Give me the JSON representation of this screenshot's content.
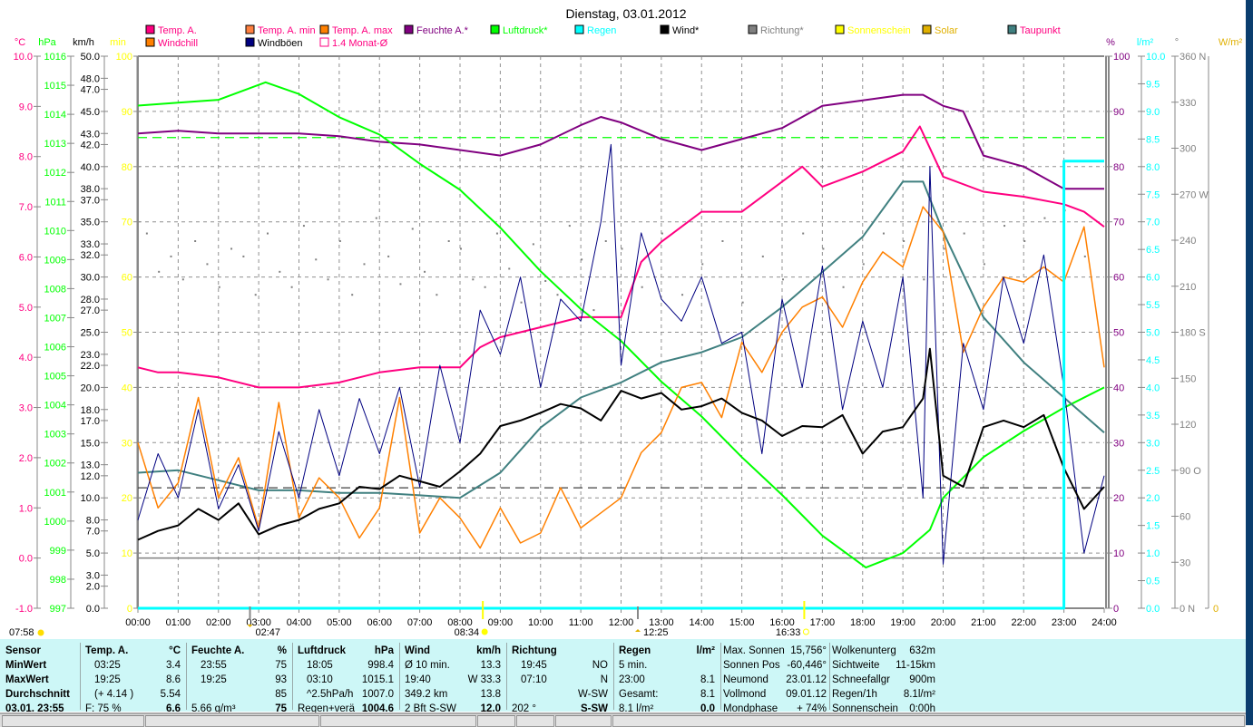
{
  "chart_data": {
    "type": "line",
    "title": "Dienstag, 03.01.2012",
    "xlim": [
      0,
      24
    ],
    "x_ticks": [
      "00:00",
      "01:00",
      "02:00",
      "03:00",
      "04:00",
      "05:00",
      "06:00",
      "07:00",
      "08:00",
      "09:00",
      "10:00",
      "11:00",
      "12:00",
      "13:00",
      "14:00",
      "15:00",
      "16:00",
      "17:00",
      "18:00",
      "19:00",
      "20:00",
      "21:00",
      "22:00",
      "23:00",
      "24:00"
    ],
    "axes": {
      "left": [
        {
          "unit": "°C",
          "range": [
            -1,
            10
          ],
          "color": "#ff0080"
        },
        {
          "unit": "hPa",
          "range": [
            997,
            1016
          ],
          "color": "#00ff00"
        },
        {
          "unit": "km/h",
          "range": [
            0,
            50
          ],
          "color": "#000000",
          "ticks": [
            50,
            48,
            47,
            45,
            43,
            42,
            40,
            38,
            37,
            35,
            33,
            32,
            30,
            28,
            27,
            25,
            23,
            22,
            20,
            18,
            17,
            15,
            13,
            12,
            10,
            8,
            7,
            5,
            3,
            2,
            0
          ]
        },
        {
          "unit": "min",
          "range": [
            0,
            100
          ],
          "color": "#ffff00"
        }
      ],
      "right": [
        {
          "unit": "%",
          "range": [
            0,
            100
          ],
          "color": "#800080"
        },
        {
          "unit": "l/m²",
          "range": [
            0,
            10
          ],
          "color": "#00ffff"
        },
        {
          "unit": "°",
          "range": [
            0,
            360
          ],
          "color": "#808080",
          "compass": {
            "360": "N",
            "270": "W",
            "180": "S",
            "90": "O",
            "0": "N"
          }
        },
        {
          "unit": "W/m²",
          "range": [
            0,
            0
          ],
          "color": "#e0b000"
        }
      ]
    },
    "legend": [
      {
        "name": "Temp. A.",
        "color": "#ff0080",
        "text_color": "#ff0080"
      },
      {
        "name": "Temp. A. min",
        "color": "#ff8040",
        "text_color": "#ff0080"
      },
      {
        "name": "Temp. A. max",
        "color": "#ff8000",
        "text_color": "#ff0080"
      },
      {
        "name": "Feuchte A.*",
        "color": "#800080",
        "text_color": "#800080"
      },
      {
        "name": "Luftdruck*",
        "color": "#00ff00",
        "text_color": "#00ff00"
      },
      {
        "name": "Regen",
        "color": "#00ffff",
        "text_color": "#00ffff"
      },
      {
        "name": "Wind*",
        "color": "#000000",
        "text_color": "#000000"
      },
      {
        "name": "Richtung*",
        "color": "#808080",
        "text_color": "#808080"
      },
      {
        "name": "Sonnenschein",
        "color": "#ffff00",
        "text_color": "#ffff00"
      },
      {
        "name": "Solar",
        "color": "#e0b000",
        "text_color": "#e0b000"
      },
      {
        "name": "Taupunkt",
        "color": "#408080",
        "text_color": "#ff0080"
      },
      {
        "name": "Windchill",
        "color": "#ff8000",
        "text_color": "#ff0080"
      },
      {
        "name": "Windböen",
        "color": "#000080",
        "text_color": "#000000"
      },
      {
        "name": "1.4 Monat-Ø",
        "color": "#ff0080",
        "text_color": "#ff0080",
        "hollow": true
      }
    ],
    "series": [
      {
        "name": "Temp. A.",
        "axis": "°C",
        "color": "#ff0080",
        "width": 2,
        "x": [
          0,
          0.5,
          1,
          2,
          3,
          4,
          5,
          6,
          7,
          8,
          8.5,
          9,
          10,
          11,
          12,
          12.5,
          13,
          14,
          15,
          16,
          16.5,
          17,
          18,
          19,
          19.42,
          20,
          21,
          22,
          23,
          23.5,
          24
        ],
        "y": [
          3.8,
          3.7,
          3.7,
          3.6,
          3.4,
          3.4,
          3.5,
          3.7,
          3.8,
          3.8,
          4.2,
          4.4,
          4.6,
          4.8,
          4.8,
          5.9,
          6.3,
          6.9,
          6.9,
          7.5,
          7.8,
          7.4,
          7.7,
          8.1,
          8.6,
          7.6,
          7.3,
          7.2,
          7.05,
          6.9,
          6.6
        ]
      },
      {
        "name": "Feuchte A.*",
        "axis": "%",
        "color": "#800080",
        "width": 2,
        "x": [
          0,
          1,
          2,
          3,
          4,
          5,
          6,
          7,
          8,
          9,
          10,
          11,
          11.5,
          12,
          13,
          14,
          15,
          16,
          17,
          18,
          19,
          19.5,
          20,
          20.5,
          21,
          22,
          23,
          24
        ],
        "y": [
          86,
          86.5,
          86,
          86,
          86,
          85.5,
          84.5,
          84,
          83,
          82,
          84,
          87.5,
          89,
          88,
          85,
          83,
          85,
          87,
          91,
          92,
          93,
          93,
          91,
          90,
          82,
          80,
          76,
          76
        ]
      },
      {
        "name": "Luftdruck*",
        "axis": "hPa",
        "color": "#00ff00",
        "width": 2,
        "x": [
          0,
          1,
          2,
          3.17,
          4,
          5,
          6,
          7,
          8,
          9,
          10,
          11,
          12,
          13,
          14,
          15,
          16,
          17,
          18.08,
          19,
          19.67,
          20,
          21,
          22,
          23,
          24
        ],
        "y": [
          1014.3,
          1014.4,
          1014.5,
          1015.1,
          1014.7,
          1013.9,
          1013.3,
          1012.3,
          1011.4,
          1010.1,
          1008.6,
          1007.3,
          1006.2,
          1004.8,
          1003.6,
          1002.2,
          1000.9,
          999.5,
          998.4,
          998.9,
          999.7,
          1000.8,
          1002.2,
          1003.1,
          1003.9,
          1004.6
        ]
      },
      {
        "name": "Taupunkt",
        "axis": "°C",
        "color": "#408080",
        "width": 2,
        "x": [
          0,
          1,
          2,
          3,
          4,
          5,
          6,
          7,
          8,
          9,
          10,
          11,
          12,
          13,
          14,
          15,
          16,
          17,
          18,
          19,
          19.5,
          20,
          21,
          22,
          23,
          24
        ],
        "y": [
          1.7,
          1.75,
          1.55,
          1.35,
          1.35,
          1.3,
          1.3,
          1.25,
          1.2,
          1.7,
          2.6,
          3.2,
          3.5,
          3.9,
          4.1,
          4.4,
          5.0,
          5.7,
          6.4,
          7.5,
          7.5,
          6.5,
          4.8,
          3.9,
          3.2,
          2.5
        ]
      },
      {
        "name": "Windchill",
        "axis": "°C",
        "color": "#ff8000",
        "width": 1.5,
        "x": [
          0,
          0.5,
          1,
          1.5,
          2,
          2.5,
          3,
          3.5,
          4,
          4.5,
          5,
          5.5,
          6,
          6.5,
          7,
          7.5,
          8,
          8.5,
          9,
          9.5,
          10,
          10.5,
          11,
          11.5,
          12,
          12.5,
          13,
          13.5,
          14,
          14.5,
          15,
          15.5,
          16,
          16.5,
          17,
          17.5,
          18,
          18.5,
          19,
          19.5,
          20,
          20.5,
          21,
          21.5,
          22,
          22.5,
          23,
          23.5,
          24
        ],
        "y": [
          2.3,
          1.0,
          1.5,
          3.2,
          1.2,
          2.0,
          0.6,
          3.1,
          0.8,
          1.6,
          1.2,
          0.4,
          1.0,
          3.2,
          0.5,
          1.2,
          0.8,
          0.2,
          1.0,
          0.3,
          0.5,
          1.4,
          0.6,
          0.9,
          1.2,
          2.1,
          2.5,
          3.4,
          3.5,
          2.8,
          4.3,
          3.7,
          4.5,
          5.0,
          5.2,
          4.6,
          5.5,
          6.1,
          5.8,
          7.0,
          6.5,
          4.1,
          5.0,
          5.6,
          5.5,
          5.8,
          5.5,
          6.6,
          3.8
        ]
      },
      {
        "name": "Windböen",
        "axis": "km/h",
        "color": "#000080",
        "width": 1,
        "x": [
          0,
          0.5,
          1,
          1.5,
          2,
          2.5,
          3,
          3.5,
          4,
          4.5,
          5,
          5.5,
          6,
          6.5,
          7,
          7.5,
          8,
          8.5,
          9,
          9.5,
          10,
          10.5,
          11,
          11.5,
          11.75,
          12,
          12.5,
          13,
          13.5,
          14,
          14.5,
          15,
          15.5,
          16,
          16.5,
          17,
          17.5,
          18,
          18.5,
          19,
          19.5,
          19.67,
          20,
          20.5,
          21,
          21.5,
          22,
          22.5,
          23,
          23.5,
          24
        ],
        "y": [
          8,
          14,
          10,
          18,
          9,
          13,
          7,
          16,
          10,
          18,
          12,
          19,
          14,
          20,
          11,
          22,
          15,
          27,
          23,
          30,
          20,
          28,
          26,
          35,
          42,
          22,
          34,
          28,
          26,
          30,
          24,
          25,
          14,
          28,
          20,
          31,
          18,
          26,
          20,
          30,
          10,
          40,
          4,
          24,
          18,
          30,
          24,
          32,
          20,
          5,
          12
        ]
      },
      {
        "name": "Wind*",
        "axis": "km/h",
        "color": "#000000",
        "width": 2,
        "x": [
          0,
          0.5,
          1,
          1.5,
          2,
          2.5,
          3,
          3.5,
          4,
          4.5,
          5,
          5.5,
          6,
          6.5,
          7,
          7.5,
          8,
          8.5,
          9,
          9.5,
          10,
          10.5,
          11,
          11.5,
          12,
          12.5,
          13,
          13.5,
          14,
          14.5,
          15,
          15.5,
          16,
          16.5,
          17,
          17.5,
          18,
          18.5,
          19,
          19.5,
          19.67,
          20,
          20.5,
          21,
          21.5,
          22,
          22.5,
          23,
          23.5,
          24
        ],
        "y": [
          6.2,
          7.0,
          7.5,
          9.0,
          8.0,
          9.5,
          6.7,
          7.5,
          8.0,
          9.0,
          9.5,
          11.0,
          10.8,
          12.0,
          11.5,
          11.0,
          12.4,
          14.0,
          16.5,
          17.0,
          17.7,
          18.5,
          18.1,
          17.0,
          19.7,
          19.0,
          19.5,
          18.0,
          18.3,
          19.0,
          17.7,
          17.0,
          15.6,
          16.5,
          16.4,
          17.5,
          14.0,
          16.0,
          16.4,
          19.0,
          23.5,
          12.0,
          11.0,
          16.4,
          17.0,
          16.4,
          17.5,
          12.7,
          9.0,
          11.0
        ]
      },
      {
        "name": "Regen",
        "axis": "l/m²",
        "color": "#00ffff",
        "width": 3,
        "step": true,
        "x": [
          0,
          23,
          23,
          24
        ],
        "y": [
          0,
          0,
          8.1,
          8.1
        ]
      }
    ],
    "direction_points": {
      "axis": "°",
      "color": "#808080",
      "x": [
        0.2,
        0.5,
        0.8,
        1.1,
        1.4,
        1.7,
        2.0,
        2.3,
        2.6,
        2.9,
        3.2,
        3.5,
        3.8,
        4.1,
        4.4,
        4.7,
        5.0,
        5.3,
        5.6,
        5.9,
        6.2,
        6.5,
        6.8,
        7.1,
        7.4,
        7.7,
        8.0,
        8.3,
        8.6,
        8.9,
        9.2,
        9.5,
        9.8,
        10.1,
        10.4,
        10.7,
        11.0,
        11.3,
        11.6,
        12.0,
        12.5,
        13.0,
        13.5,
        14.0,
        14.5,
        15.0,
        15.5,
        16.0,
        16.5,
        17.0,
        17.5,
        18.0,
        18.5,
        19.0,
        19.5,
        20.0,
        20.5,
        21.0,
        21.5,
        22.0,
        22.5,
        23.0,
        23.5
      ],
      "y": [
        245,
        220,
        230,
        215,
        240,
        225,
        210,
        235,
        230,
        205,
        245,
        220,
        210,
        250,
        228,
        215,
        240,
        205,
        225,
        255,
        230,
        212,
        248,
        220,
        205,
        240,
        235,
        215,
        210,
        245,
        222,
        200,
        238,
        214,
        205,
        250,
        228,
        195,
        240,
        235,
        210,
        245,
        205,
        225,
        240,
        200,
        230,
        215,
        245,
        235,
        210,
        225,
        245,
        240,
        215,
        235,
        245,
        225,
        250,
        240,
        255,
        260,
        230
      ]
    },
    "reference_lines": [
      {
        "name": "1.4 Monat-Ø",
        "axis": "°C",
        "value": 1.4,
        "color": "#404040",
        "dashed": true
      },
      {
        "name": "Luftdruck Monat-Ø",
        "axis": "hPa",
        "value": 1013.2,
        "color": "#00ff00",
        "dashed": true
      },
      {
        "name": "Temp 0",
        "axis": "°C",
        "value": 0,
        "color": "#808080",
        "dashed": false
      }
    ],
    "grid": true,
    "legend_placement": "top"
  },
  "markers": {
    "sunrise": "07:58",
    "moon": "02:47",
    "sun_up": "08:34",
    "noon": "12:25",
    "sun_down": "16:33"
  },
  "table": {
    "sensor": {
      "header": "Sensor",
      "rows": [
        "MinWert",
        "MaxWert",
        "Durchschnitt",
        "03.01. 23:55"
      ]
    },
    "temp": {
      "header": "Temp. A.",
      "unit": "°C",
      "rows": [
        [
          "03:25",
          "3.4"
        ],
        [
          "19:25",
          "8.6"
        ],
        [
          "(+ 4.14 )",
          "5.54"
        ],
        [
          "F: 75 %",
          "6.6"
        ]
      ]
    },
    "feuchte": {
      "header": "Feuchte A.",
      "unit": "%",
      "rows": [
        [
          "23:55",
          "75"
        ],
        [
          "19:25",
          "93"
        ],
        [
          "",
          "85"
        ],
        [
          "5.66 g/m³",
          "75"
        ]
      ]
    },
    "luftdruck": {
      "header": "Luftdruck",
      "unit": "hPa",
      "rows": [
        [
          "18:05",
          "998.4"
        ],
        [
          "03:10",
          "1015.1"
        ],
        [
          "^2.5hPa/h",
          "1007.0"
        ],
        [
          "Regen+verä",
          "1004.6"
        ]
      ]
    },
    "wind": {
      "header": "Wind",
      "unit": "km/h",
      "rows": [
        [
          "Ø 10 min.",
          "13.3"
        ],
        [
          "19:40",
          "W 33.3"
        ],
        [
          "349.2 km",
          "13.8"
        ],
        [
          "2 Bft S-SW",
          "12.0"
        ]
      ]
    },
    "richtung": {
      "header": "Richtung",
      "unit": "",
      "rows": [
        [
          "19:45",
          "NO"
        ],
        [
          "07:10",
          "N"
        ],
        [
          "",
          "W-SW"
        ],
        [
          "202 °",
          "S-SW"
        ]
      ]
    },
    "regen": {
      "header": "Regen",
      "unit": "l/m²",
      "rows": [
        [
          "5 min.",
          ""
        ],
        [
          "23:00",
          "8.1"
        ],
        [
          "Gesamt:",
          "8.1"
        ],
        [
          "8.1 l/m²",
          "0.0"
        ]
      ]
    },
    "astro": [
      [
        "Max. Sonnen",
        "15,756°"
      ],
      [
        "Sonnen Pos",
        "-60,446°"
      ],
      [
        "Neumond",
        "23.01.12"
      ],
      [
        "Vollmond",
        "09.01.12"
      ],
      [
        "Mondphase",
        "+ 74%"
      ]
    ],
    "wetter": [
      [
        "Wolkenunterg",
        "632m"
      ],
      [
        "Sichtweite",
        "11-15km"
      ],
      [
        "Schneefallgr",
        "900m"
      ],
      [
        "Regen/1h",
        "8.1l/m²"
      ],
      [
        "Sonnenschein",
        "0:00h"
      ]
    ]
  }
}
